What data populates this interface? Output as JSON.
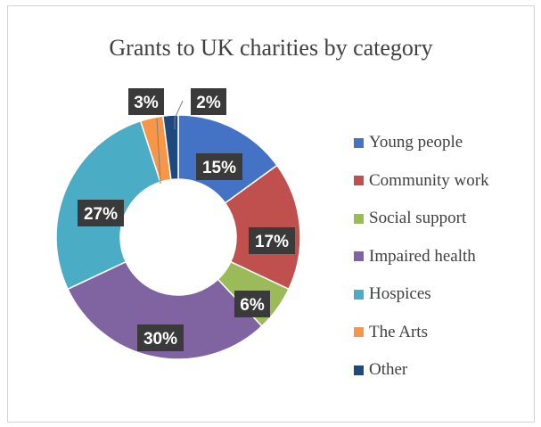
{
  "chart_data": {
    "type": "pie",
    "title": "Grants to UK charities by category",
    "legend_position": "right",
    "donut": true,
    "categories": [
      "Young people",
      "Community work",
      "Social support",
      "Impaired health",
      "Hospices",
      "The Arts",
      "Other"
    ],
    "values": [
      15,
      17,
      6,
      30,
      27,
      3,
      2
    ],
    "labels": [
      "15%",
      "17%",
      "6%",
      "30%",
      "27%",
      "3%",
      "2%"
    ],
    "colors": [
      "#4472C4",
      "#C0504D",
      "#9BBB59",
      "#8064A2",
      "#4BACC6",
      "#F79646",
      "#1F497D"
    ]
  }
}
